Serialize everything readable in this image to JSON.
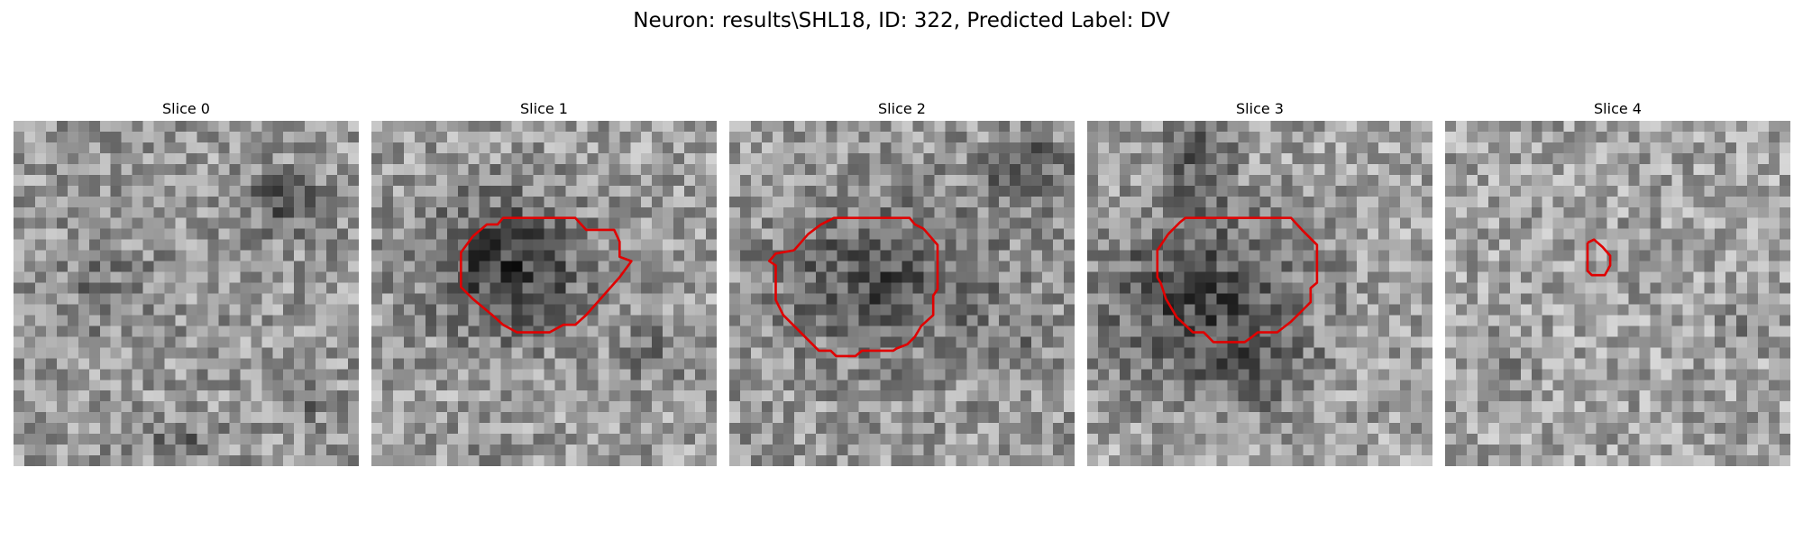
{
  "figure": {
    "title": "Neuron: results\\SHL18, ID: 322, Predicted Label: DV"
  },
  "panels": [
    {
      "title": "Slice 0"
    },
    {
      "title": "Slice 1"
    },
    {
      "title": "Slice 2"
    },
    {
      "title": "Slice 3"
    },
    {
      "title": "Slice 4"
    }
  ],
  "colors": {
    "contour": "#e00000",
    "background": "#ffffff"
  }
}
